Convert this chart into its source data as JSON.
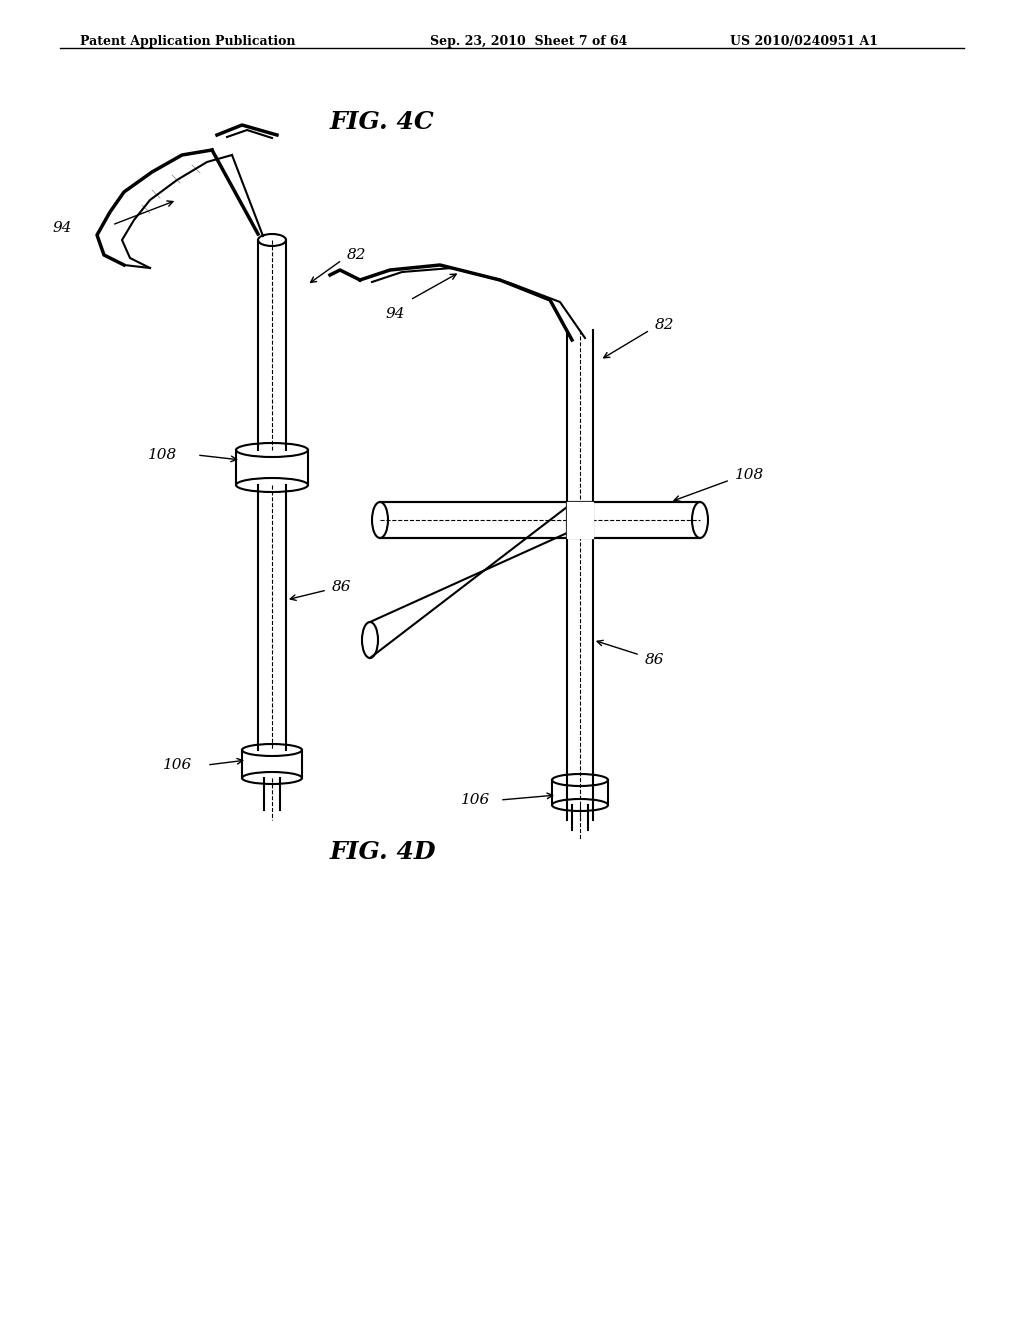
{
  "background_color": "#ffffff",
  "header_left": "Patent Application Publication",
  "header_center": "Sep. 23, 2010  Sheet 7 of 64",
  "header_right": "US 2010/0240951 A1",
  "fig4c_label": "FIG. 4C",
  "fig4d_label": "FIG. 4D",
  "labels": {
    "94_top": "94",
    "82_top": "82",
    "108_top": "108",
    "86_top": "86",
    "106_top": "106",
    "94_bot": "94",
    "82_bot": "82",
    "108_bot": "108",
    "86_bot": "86",
    "106_bot": "106"
  },
  "line_color": "#000000",
  "lw": 1.5,
  "lw_thick": 2.5
}
